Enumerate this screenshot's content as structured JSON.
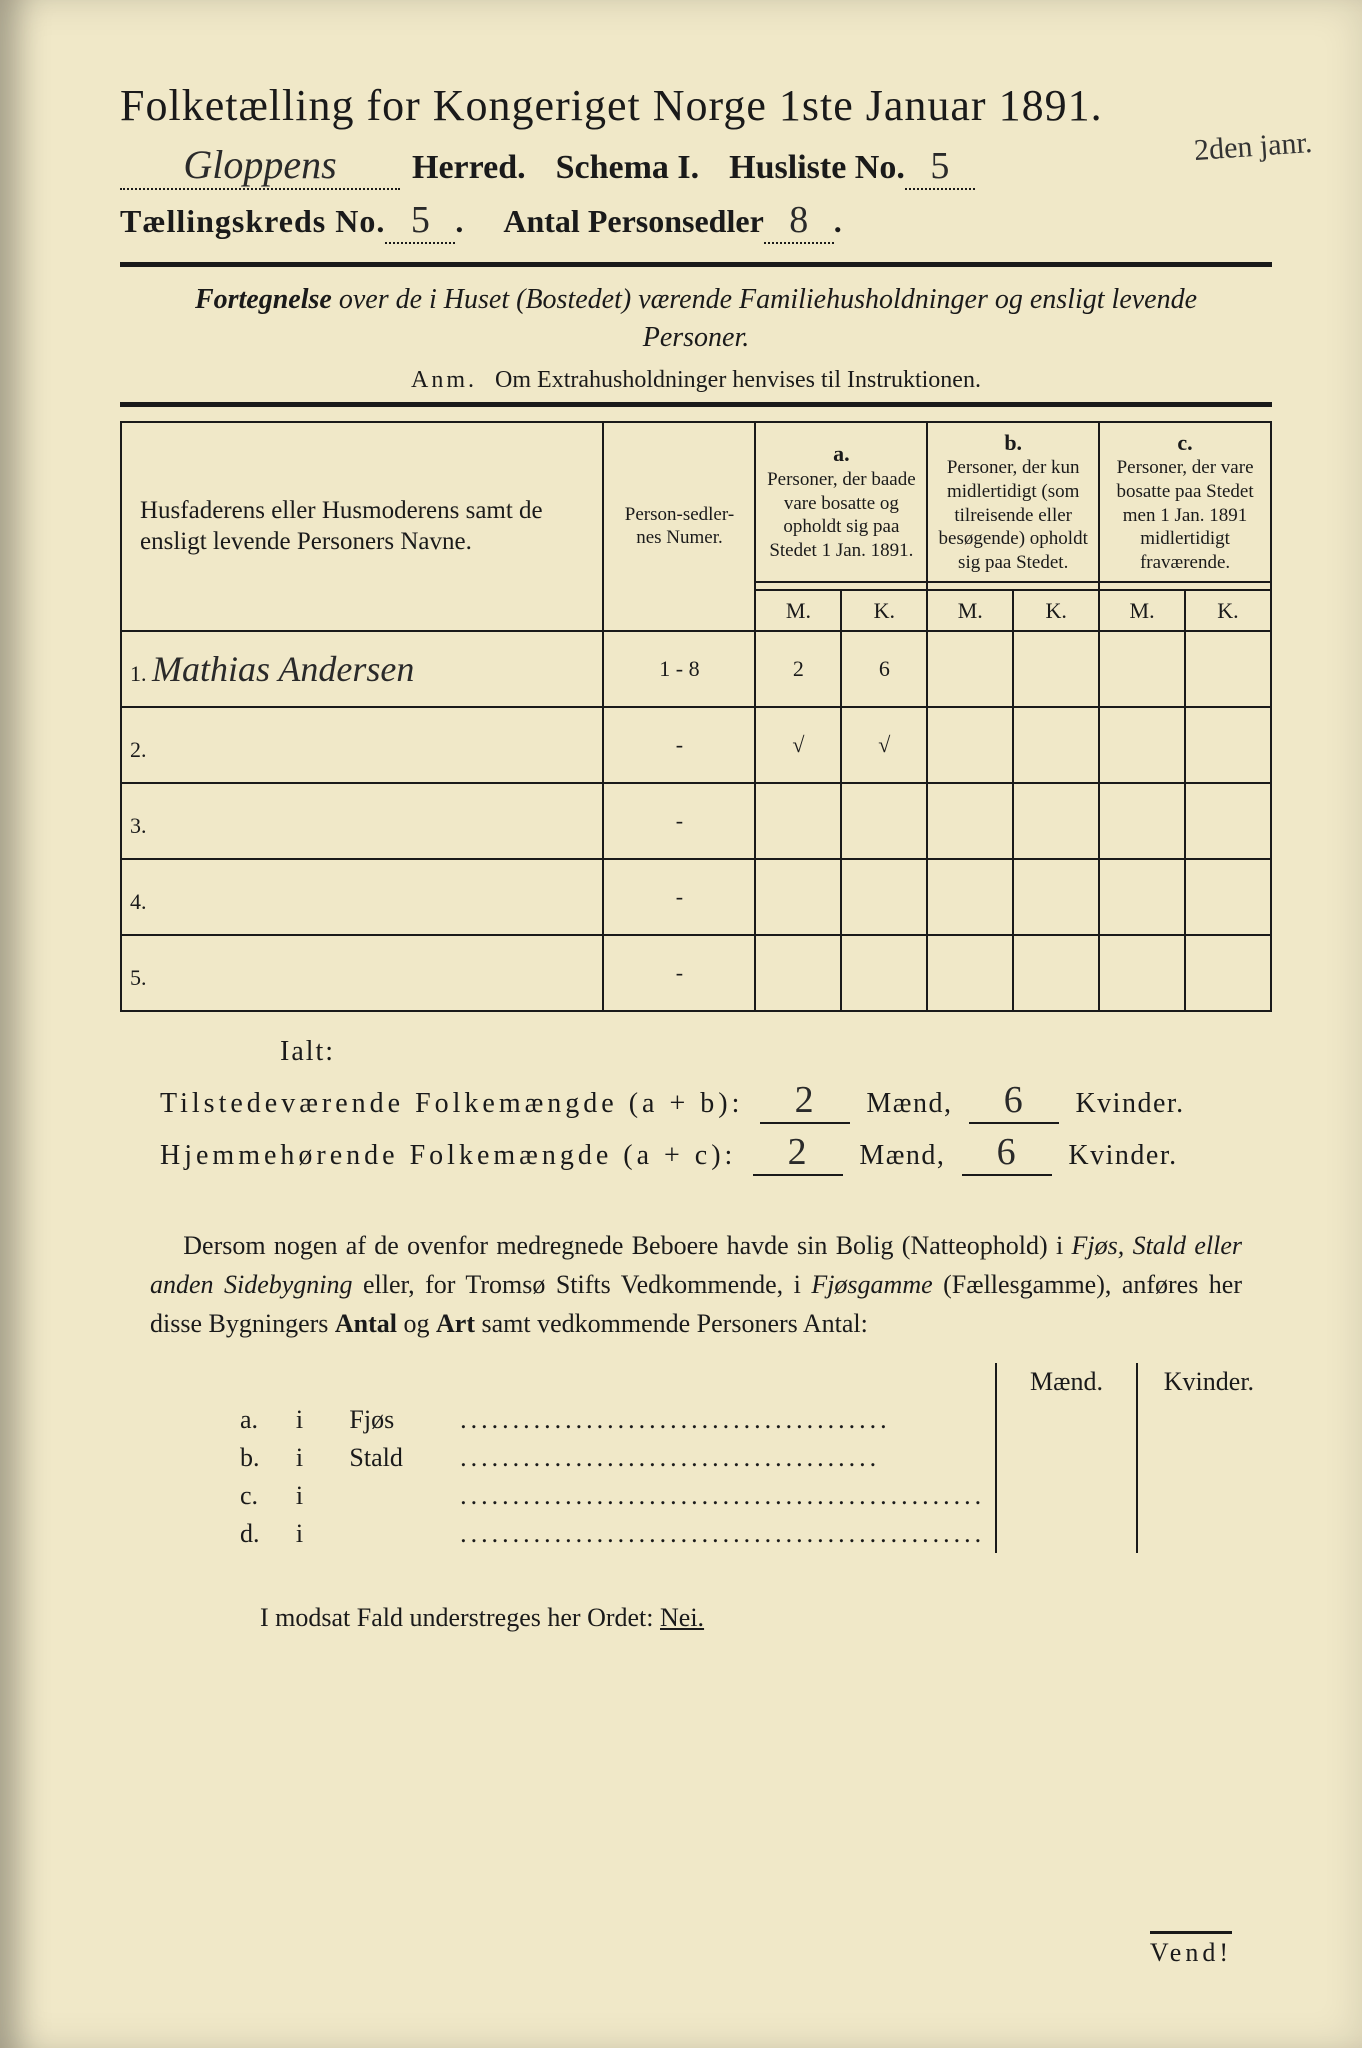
{
  "header": {
    "title": "Folketælling for Kongeriget Norge 1ste Januar 1891.",
    "herred_handwritten": "Gloppens",
    "herred_label": "Herred.",
    "schema_label": "Schema I.",
    "husliste_label": "Husliste No.",
    "husliste_no": "5",
    "margin_date": "2den janr.",
    "kreds_label": "Tællingskreds No.",
    "kreds_no": "5",
    "personsedler_label": "Antal Personsedler",
    "personsedler_no": "8"
  },
  "fortegnelse": {
    "lead": "Fortegnelse",
    "rest": " over de i Huset (Bostedet) værende Familiehusholdninger og ensligt levende Personer.",
    "anm_label": "Anm.",
    "anm_text": "Om Extrahusholdninger henvises til Instruktionen."
  },
  "table": {
    "col_name": "Husfaderens eller Husmoderens samt de ensligt levende Personers Navne.",
    "col_numer": "Person-sedler-nes Numer.",
    "col_a_label": "a.",
    "col_a": "Personer, der baade vare bosatte og opholdt sig paa Stedet 1 Jan. 1891.",
    "col_b_label": "b.",
    "col_b": "Personer, der kun midlertidigt (som tilreisende eller besøgende) opholdt sig paa Stedet.",
    "col_c_label": "c.",
    "col_c": "Personer, der vare bosatte paa Stedet men 1 Jan. 1891 midlertidigt fraværende.",
    "mk_m": "M.",
    "mk_k": "K.",
    "rows": [
      {
        "n": "1.",
        "name": "Mathias Andersen",
        "numer": "1 - 8",
        "a_m": "2",
        "a_k": "6",
        "b_m": "",
        "b_k": "",
        "c_m": "",
        "c_k": ""
      },
      {
        "n": "2.",
        "name": "",
        "numer": "-",
        "a_m": "√",
        "a_k": "√",
        "b_m": "",
        "b_k": "",
        "c_m": "",
        "c_k": ""
      },
      {
        "n": "3.",
        "name": "",
        "numer": "-",
        "a_m": "",
        "a_k": "",
        "b_m": "",
        "b_k": "",
        "c_m": "",
        "c_k": ""
      },
      {
        "n": "4.",
        "name": "",
        "numer": "-",
        "a_m": "",
        "a_k": "",
        "b_m": "",
        "b_k": "",
        "c_m": "",
        "c_k": ""
      },
      {
        "n": "5.",
        "name": "",
        "numer": "-",
        "a_m": "",
        "a_k": "",
        "b_m": "",
        "b_k": "",
        "c_m": "",
        "c_k": ""
      }
    ]
  },
  "totals": {
    "ialt": "Ialt:",
    "line1_label": "Tilstedeværende Folkemængde (a + b):",
    "line2_label": "Hjemmehørende Folkemængde (a + c):",
    "maend": "Mænd,",
    "kvinder": "Kvinder.",
    "t_m": "2",
    "t_k": "6",
    "h_m": "2",
    "h_k": "6"
  },
  "paragraph": {
    "text1": "Dersom nogen af de ovenfor medregnede Beboere havde sin Bolig (Natteophold) i ",
    "it1": "Fjøs, Stald eller anden Sidebygning",
    "text2": " eller, for Tromsø Stifts Vedkommende, i ",
    "it2": "Fjøsgamme",
    "text3": " (Fællesgamme), anføres her disse Bygningers ",
    "b1": "Antal",
    "text4": " og ",
    "b2": "Art",
    "text5": " samt vedkommende Personers Antal:"
  },
  "side_table": {
    "hdr_m": "Mænd.",
    "hdr_k": "Kvinder.",
    "rows": [
      {
        "l": "a.",
        "i": "i",
        "t": "Fjøs",
        "dots": "........................................."
      },
      {
        "l": "b.",
        "i": "i",
        "t": "Stald",
        "dots": "........................................"
      },
      {
        "l": "c.",
        "i": "i",
        "t": "",
        "dots": ".................................................."
      },
      {
        "l": "d.",
        "i": "i",
        "t": "",
        "dots": ".................................................."
      }
    ]
  },
  "footer": {
    "modsat": "I modsat Fald understreges her Ordet: ",
    "nei": "Nei.",
    "vend": "Vend!"
  },
  "colors": {
    "paper": "#f0e8c8",
    "ink": "#1a1a1a",
    "hand": "#2a2a2a"
  }
}
